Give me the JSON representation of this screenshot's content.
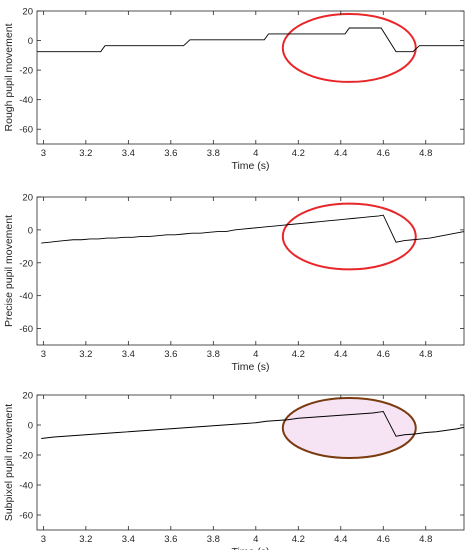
{
  "chart_data": [
    {
      "type": "line",
      "xlabel": "Time (s)",
      "ylabel": "Rough pupil movement",
      "xlim": [
        2.97,
        4.98
      ],
      "ylim": [
        -70,
        20
      ],
      "xticks": [
        3,
        3.2,
        3.4,
        3.6,
        3.8,
        4,
        4.2,
        4.4,
        4.6,
        4.8
      ],
      "yticks": [
        20,
        0,
        -20,
        -40,
        -60
      ],
      "grid": false,
      "line_color": "#000000",
      "highlight": {
        "shape": "ellipse",
        "color": "#e8262a",
        "center_x": 4.44,
        "center_y": -5,
        "rx": 0.313,
        "ry": 23
      },
      "series": [
        {
          "x": [
            2.97,
            3.27,
            3.29,
            3.66,
            3.69,
            4.04,
            4.06,
            4.42,
            4.44,
            4.59,
            4.66,
            4.74,
            4.77,
            4.98
          ],
          "y": [
            -7.5,
            -7.5,
            -3.5,
            -3.5,
            0.5,
            0.5,
            4.5,
            4.5,
            8.5,
            8.5,
            -7.5,
            -7.5,
            -3.5,
            -3.5
          ]
        }
      ]
    },
    {
      "type": "line",
      "xlabel": "Time (s)",
      "ylabel": "Precise pupil movement",
      "xlim": [
        2.97,
        4.98
      ],
      "ylim": [
        -70,
        20
      ],
      "xticks": [
        3,
        3.2,
        3.4,
        3.6,
        3.8,
        4,
        4.2,
        4.4,
        4.6,
        4.8
      ],
      "yticks": [
        20,
        0,
        -20,
        -40,
        -60
      ],
      "grid": false,
      "line_color": "#000000",
      "highlight": {
        "shape": "ellipse",
        "color": "#e8262a",
        "center_x": 4.44,
        "center_y": -4,
        "rx": 0.313,
        "ry": 20
      },
      "series": [
        {
          "x": [
            2.99,
            3.03,
            3.06,
            3.1,
            3.14,
            3.18,
            3.22,
            3.26,
            3.3,
            3.34,
            3.38,
            3.42,
            3.46,
            3.5,
            3.54,
            3.58,
            3.62,
            3.66,
            3.7,
            3.74,
            3.78,
            3.82,
            3.86,
            3.9,
            3.94,
            3.98,
            4.02,
            4.06,
            4.1,
            4.14,
            4.18,
            4.22,
            4.26,
            4.3,
            4.34,
            4.38,
            4.42,
            4.46,
            4.5,
            4.54,
            4.58,
            4.6,
            4.66,
            4.7,
            4.74,
            4.78,
            4.82,
            4.86,
            4.9,
            4.94,
            4.98
          ],
          "y": [
            -8,
            -7.5,
            -7,
            -6.5,
            -6,
            -6,
            -5.5,
            -5.5,
            -5,
            -5,
            -4.5,
            -4.5,
            -4,
            -4,
            -3.5,
            -3,
            -3,
            -2.5,
            -2,
            -2,
            -1.5,
            -1,
            -1,
            0,
            0.5,
            1,
            1.5,
            2,
            2.5,
            3,
            3.5,
            4,
            4.5,
            5,
            5.5,
            6,
            6.5,
            7,
            7.5,
            8,
            8.5,
            9,
            -7.5,
            -6.5,
            -6,
            -5.5,
            -5,
            -4,
            -3,
            -2,
            -1
          ]
        }
      ]
    },
    {
      "type": "line",
      "xlabel": "Time (s)",
      "ylabel": "Subpixel pupil movement",
      "xlim": [
        2.97,
        4.98
      ],
      "ylim": [
        -70,
        20
      ],
      "xticks": [
        3,
        3.2,
        3.4,
        3.6,
        3.8,
        4,
        4.2,
        4.4,
        4.6,
        4.8
      ],
      "yticks": [
        20,
        0,
        -20,
        -40,
        -60
      ],
      "grid": false,
      "line_color": "#000000",
      "highlight": {
        "shape": "ellipse",
        "color": "#7a3b10",
        "fill": "#f6e4f4",
        "center_x": 4.44,
        "center_y": -2,
        "rx": 0.313,
        "ry": 20
      },
      "series": [
        {
          "x": [
            2.99,
            3.05,
            3.1,
            3.15,
            3.2,
            3.25,
            3.3,
            3.35,
            3.4,
            3.45,
            3.5,
            3.55,
            3.6,
            3.65,
            3.7,
            3.75,
            3.8,
            3.85,
            3.9,
            3.95,
            4.0,
            4.05,
            4.1,
            4.15,
            4.2,
            4.25,
            4.3,
            4.35,
            4.4,
            4.45,
            4.5,
            4.55,
            4.6,
            4.66,
            4.7,
            4.75,
            4.8,
            4.85,
            4.9,
            4.95,
            4.98
          ],
          "y": [
            -9,
            -8,
            -7.5,
            -7,
            -6.5,
            -6,
            -5.5,
            -5,
            -4.5,
            -4,
            -3.5,
            -3,
            -2.5,
            -2,
            -1.5,
            -1,
            -0.5,
            0,
            0.5,
            1,
            1.5,
            2.5,
            3,
            3.5,
            4.5,
            5,
            5.5,
            6,
            6.5,
            7,
            7.5,
            8,
            9,
            -7.5,
            -6.5,
            -6,
            -5,
            -4.5,
            -3.5,
            -2.5,
            -1.5
          ]
        }
      ]
    }
  ]
}
